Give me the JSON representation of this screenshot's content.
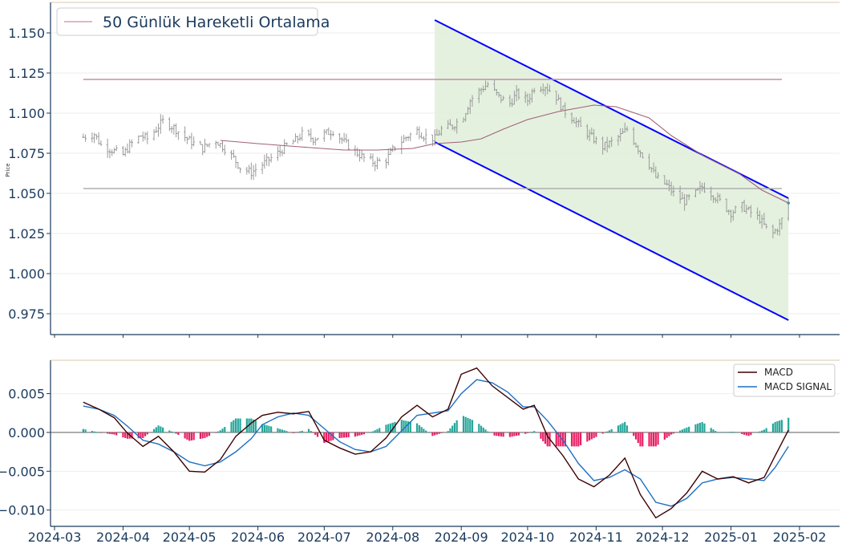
{
  "chart_data": [
    {
      "type": "ohlc",
      "ylabel": "Price",
      "ylim": [
        0.962,
        1.169
      ],
      "yticks": [
        "1.150",
        "1.125",
        "1.100",
        "1.075",
        "1.050",
        "1.025",
        "1.000",
        "0.975"
      ],
      "ytick_values": [
        1.15,
        1.125,
        1.1,
        1.075,
        1.05,
        1.025,
        1.0,
        0.975
      ],
      "legend": {
        "label": "50 Günlük Hareketli Ortalama",
        "position": "top-left"
      },
      "grid": true,
      "x_start": "2024-03-14",
      "x_end": "2025-01-27",
      "close_path": [
        [
          "2024-03-14",
          1.085
        ],
        [
          "2024-03-19",
          1.087
        ],
        [
          "2024-03-22",
          1.08
        ],
        [
          "2024-03-27",
          1.077
        ],
        [
          "2024-04-01",
          1.074
        ],
        [
          "2024-04-04",
          1.08
        ],
        [
          "2024-04-09",
          1.086
        ],
        [
          "2024-04-12",
          1.084
        ],
        [
          "2024-04-16",
          1.09
        ],
        [
          "2024-04-19",
          1.095
        ],
        [
          "2024-04-24",
          1.091
        ],
        [
          "2024-04-29",
          1.085
        ],
        [
          "2024-05-02",
          1.082
        ],
        [
          "2024-05-07",
          1.078
        ],
        [
          "2024-05-10",
          1.081
        ],
        [
          "2024-05-13",
          1.083
        ],
        [
          "2024-05-17",
          1.078
        ],
        [
          "2024-05-21",
          1.072
        ],
        [
          "2024-05-24",
          1.066
        ],
        [
          "2024-05-29",
          1.063
        ],
        [
          "2024-06-03",
          1.068
        ],
        [
          "2024-06-06",
          1.071
        ],
        [
          "2024-06-11",
          1.076
        ],
        [
          "2024-06-14",
          1.08
        ],
        [
          "2024-06-18",
          1.083
        ],
        [
          "2024-06-21",
          1.087
        ],
        [
          "2024-06-26",
          1.084
        ],
        [
          "2024-07-01",
          1.087
        ],
        [
          "2024-07-05",
          1.089
        ],
        [
          "2024-07-10",
          1.082
        ],
        [
          "2024-07-15",
          1.076
        ],
        [
          "2024-07-19",
          1.072
        ],
        [
          "2024-07-24",
          1.069
        ],
        [
          "2024-07-29",
          1.071
        ],
        [
          "2024-08-02",
          1.079
        ],
        [
          "2024-08-07",
          1.085
        ],
        [
          "2024-08-12",
          1.089
        ],
        [
          "2024-08-15",
          1.086
        ],
        [
          "2024-08-20",
          1.084
        ],
        [
          "2024-08-23",
          1.09
        ],
        [
          "2024-08-28",
          1.092
        ],
        [
          "2024-09-02",
          1.098
        ],
        [
          "2024-09-05",
          1.108
        ],
        [
          "2024-09-10",
          1.115
        ],
        [
          "2024-09-13",
          1.118
        ],
        [
          "2024-09-18",
          1.11
        ],
        [
          "2024-09-23",
          1.106
        ],
        [
          "2024-09-26",
          1.112
        ],
        [
          "2024-10-01",
          1.108
        ],
        [
          "2024-10-04",
          1.116
        ],
        [
          "2024-10-09",
          1.117
        ],
        [
          "2024-10-14",
          1.11
        ],
        [
          "2024-10-17",
          1.102
        ],
        [
          "2024-10-22",
          1.096
        ],
        [
          "2024-10-25",
          1.091
        ],
        [
          "2024-10-30",
          1.085
        ],
        [
          "2024-11-04",
          1.079
        ],
        [
          "2024-11-07",
          1.081
        ],
        [
          "2024-11-12",
          1.086
        ],
        [
          "2024-11-15",
          1.09
        ],
        [
          "2024-11-20",
          1.078
        ],
        [
          "2024-11-25",
          1.068
        ],
        [
          "2024-11-28",
          1.06
        ],
        [
          "2024-12-03",
          1.055
        ],
        [
          "2024-12-06",
          1.05
        ],
        [
          "2024-12-11",
          1.045
        ],
        [
          "2024-12-16",
          1.05
        ],
        [
          "2024-12-19",
          1.054
        ],
        [
          "2024-12-24",
          1.049
        ],
        [
          "2024-12-27",
          1.045
        ],
        [
          "2025-01-01",
          1.038
        ],
        [
          "2025-01-06",
          1.042
        ],
        [
          "2025-01-09",
          1.039
        ],
        [
          "2025-01-14",
          1.034
        ],
        [
          "2025-01-17",
          1.028
        ],
        [
          "2025-01-20",
          1.025
        ],
        [
          "2025-01-23",
          1.03
        ],
        [
          "2025-01-27",
          1.044
        ]
      ],
      "ma_path": [
        [
          "2024-05-15",
          1.083
        ],
        [
          "2024-06-01",
          1.081
        ],
        [
          "2024-06-20",
          1.079
        ],
        [
          "2024-07-10",
          1.077
        ],
        [
          "2024-07-25",
          1.077
        ],
        [
          "2024-08-10",
          1.078
        ],
        [
          "2024-08-20",
          1.081
        ],
        [
          "2024-09-01",
          1.082
        ],
        [
          "2024-09-10",
          1.084
        ],
        [
          "2024-09-20",
          1.09
        ],
        [
          "2024-10-01",
          1.096
        ],
        [
          "2024-10-15",
          1.101
        ],
        [
          "2024-10-31",
          1.105
        ],
        [
          "2024-11-10",
          1.104
        ],
        [
          "2024-11-25",
          1.097
        ],
        [
          "2024-12-05",
          1.086
        ],
        [
          "2024-12-20",
          1.073
        ],
        [
          "2025-01-05",
          1.062
        ],
        [
          "2025-01-15",
          1.052
        ],
        [
          "2025-01-27",
          1.044
        ]
      ],
      "horizontal_lines": [
        {
          "y": 1.121,
          "from": "2024-03-14",
          "to": "2025-01-24",
          "color": "#c090a8"
        },
        {
          "y": 1.053,
          "from": "2024-03-14",
          "to": "2025-01-24",
          "color": "#b0b0b0"
        }
      ],
      "channel": {
        "upper": [
          [
            "2024-08-20",
            1.158
          ],
          [
            "2025-01-27",
            1.047
          ]
        ],
        "lower": [
          [
            "2024-08-20",
            1.082
          ],
          [
            "2025-01-27",
            0.971
          ]
        ],
        "fill": "#e2f0db",
        "line_color": "#0000ff"
      }
    },
    {
      "type": "line+bar",
      "ylim": [
        -0.0121,
        0.0093
      ],
      "yticks": [
        "0.005",
        "0.000",
        "−0.005",
        "−0.010"
      ],
      "ytick_values": [
        0.005,
        0.0,
        -0.005,
        -0.01
      ],
      "xticks": [
        "2024-03",
        "2024-04",
        "2024-05",
        "2024-06",
        "2024-07",
        "2024-08",
        "2024-09",
        "2024-10",
        "2024-11",
        "2024-12",
        "2025-01",
        "2025-02"
      ],
      "legend": {
        "position": "top-right"
      },
      "series": [
        {
          "name": "MACD",
          "color": "#3b0000",
          "points": [
            [
              "2024-03-14",
              0.0039
            ],
            [
              "2024-03-21",
              0.003
            ],
            [
              "2024-03-28",
              0.0019
            ],
            [
              "2024-04-03",
              -0.0001
            ],
            [
              "2024-04-10",
              -0.0018
            ],
            [
              "2024-04-17",
              -0.0005
            ],
            [
              "2024-04-24",
              -0.0025
            ],
            [
              "2024-05-01",
              -0.005
            ],
            [
              "2024-05-08",
              -0.0051
            ],
            [
              "2024-05-15",
              -0.0035
            ],
            [
              "2024-05-22",
              -0.0005
            ],
            [
              "2024-05-29",
              0.0012
            ],
            [
              "2024-06-03",
              0.0022
            ],
            [
              "2024-06-10",
              0.0026
            ],
            [
              "2024-06-17",
              0.0024
            ],
            [
              "2024-06-24",
              0.0027
            ],
            [
              "2024-07-01",
              -0.001
            ],
            [
              "2024-07-08",
              -0.002
            ],
            [
              "2024-07-15",
              -0.0028
            ],
            [
              "2024-07-22",
              -0.0025
            ],
            [
              "2024-07-29",
              -0.0007
            ],
            [
              "2024-08-05",
              0.002
            ],
            [
              "2024-08-12",
              0.0035
            ],
            [
              "2024-08-19",
              0.002
            ],
            [
              "2024-08-26",
              0.003
            ],
            [
              "2024-09-01",
              0.0075
            ],
            [
              "2024-09-08",
              0.0083
            ],
            [
              "2024-09-15",
              0.006
            ],
            [
              "2024-09-22",
              0.0045
            ],
            [
              "2024-09-29",
              0.003
            ],
            [
              "2024-10-04",
              0.0035
            ],
            [
              "2024-10-10",
              -0.0005
            ],
            [
              "2024-10-17",
              -0.003
            ],
            [
              "2024-10-24",
              -0.006
            ],
            [
              "2024-10-31",
              -0.007
            ],
            [
              "2024-11-07",
              -0.0055
            ],
            [
              "2024-11-14",
              -0.0033
            ],
            [
              "2024-11-21",
              -0.008
            ],
            [
              "2024-11-28",
              -0.011
            ],
            [
              "2024-12-05",
              -0.0098
            ],
            [
              "2024-12-12",
              -0.0078
            ],
            [
              "2024-12-19",
              -0.005
            ],
            [
              "2024-12-26",
              -0.006
            ],
            [
              "2025-01-02",
              -0.0057
            ],
            [
              "2025-01-09",
              -0.0065
            ],
            [
              "2025-01-16",
              -0.0058
            ],
            [
              "2025-01-21",
              -0.003
            ],
            [
              "2025-01-27",
              0.0003
            ]
          ]
        },
        {
          "name": "MACD SIGNAL",
          "color": "#1f6fc0",
          "points": [
            [
              "2024-03-14",
              0.0034
            ],
            [
              "2024-03-21",
              0.003
            ],
            [
              "2024-03-28",
              0.0022
            ],
            [
              "2024-04-03",
              0.0008
            ],
            [
              "2024-04-10",
              -0.001
            ],
            [
              "2024-04-17",
              -0.0015
            ],
            [
              "2024-04-24",
              -0.0025
            ],
            [
              "2024-05-01",
              -0.0038
            ],
            [
              "2024-05-08",
              -0.0043
            ],
            [
              "2024-05-15",
              -0.0038
            ],
            [
              "2024-05-22",
              -0.0025
            ],
            [
              "2024-05-29",
              -0.0008
            ],
            [
              "2024-06-03",
              0.001
            ],
            [
              "2024-06-10",
              0.002
            ],
            [
              "2024-06-17",
              0.0025
            ],
            [
              "2024-06-24",
              0.0022
            ],
            [
              "2024-07-01",
              0.0005
            ],
            [
              "2024-07-08",
              -0.0012
            ],
            [
              "2024-07-15",
              -0.0022
            ],
            [
              "2024-07-22",
              -0.0025
            ],
            [
              "2024-07-29",
              -0.0018
            ],
            [
              "2024-08-05",
              0.0002
            ],
            [
              "2024-08-12",
              0.0022
            ],
            [
              "2024-08-19",
              0.0025
            ],
            [
              "2024-08-26",
              0.0028
            ],
            [
              "2024-09-01",
              0.005
            ],
            [
              "2024-09-08",
              0.0068
            ],
            [
              "2024-09-15",
              0.0064
            ],
            [
              "2024-09-22",
              0.0052
            ],
            [
              "2024-09-29",
              0.0033
            ],
            [
              "2024-10-04",
              0.0033
            ],
            [
              "2024-10-10",
              0.0015
            ],
            [
              "2024-10-17",
              -0.001
            ],
            [
              "2024-10-24",
              -0.004
            ],
            [
              "2024-10-31",
              -0.0062
            ],
            [
              "2024-11-07",
              -0.0058
            ],
            [
              "2024-11-14",
              -0.0048
            ],
            [
              "2024-11-21",
              -0.006
            ],
            [
              "2024-11-28",
              -0.009
            ],
            [
              "2024-12-05",
              -0.0095
            ],
            [
              "2024-12-12",
              -0.0085
            ],
            [
              "2024-12-19",
              -0.0065
            ],
            [
              "2024-12-26",
              -0.006
            ],
            [
              "2025-01-02",
              -0.0058
            ],
            [
              "2025-01-09",
              -0.006
            ],
            [
              "2025-01-16",
              -0.0062
            ],
            [
              "2025-01-21",
              -0.0045
            ],
            [
              "2025-01-27",
              -0.0018
            ]
          ]
        }
      ],
      "histogram_colors": {
        "positive": "#26a69a",
        "negative": "#e91e63"
      },
      "zero_line_color": "#888888"
    }
  ],
  "legend_macd": {
    "macd_label": "MACD",
    "signal_label": "MACD SIGNAL"
  }
}
